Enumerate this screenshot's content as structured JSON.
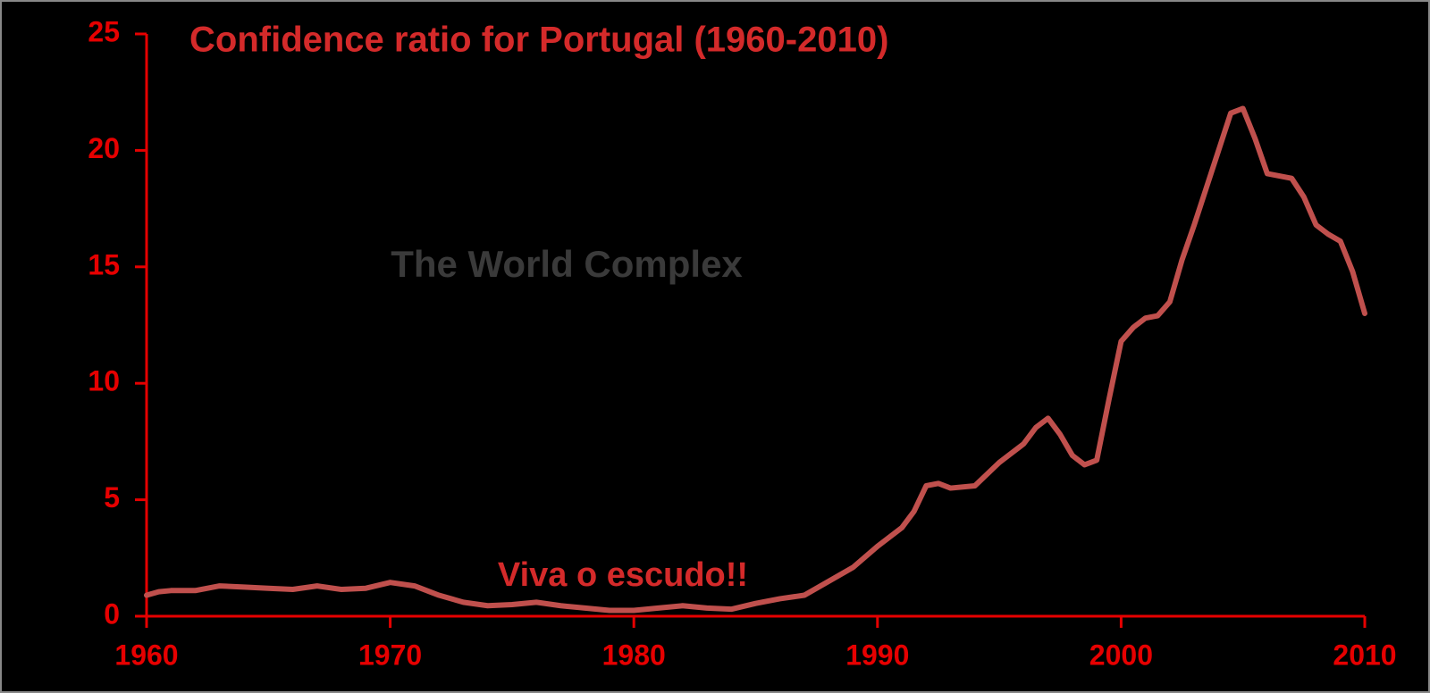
{
  "chart_data": {
    "type": "line",
    "title": "Confidence ratio for Portugal (1960-2010)",
    "watermark": "The World Complex",
    "annotation": "Viva o escudo!!",
    "x": [
      1960,
      1960.5,
      1961,
      1962,
      1963,
      1964,
      1965,
      1966,
      1967,
      1968,
      1969,
      1970,
      1971,
      1972,
      1973,
      1974,
      1975,
      1976,
      1977,
      1978,
      1979,
      1980,
      1981,
      1982,
      1983,
      1984,
      1985,
      1986,
      1987,
      1988,
      1989,
      1990,
      1991,
      1991.5,
      1992,
      1992.5,
      1993,
      1994,
      1995,
      1996,
      1996.5,
      1997,
      1997.5,
      1998,
      1998.5,
      1999,
      1999.5,
      2000,
      2000.5,
      2001,
      2001.5,
      2002,
      2002.5,
      2003,
      2003.5,
      2004,
      2004.5,
      2005,
      2005.5,
      2006,
      2006.5,
      2007,
      2007.5,
      2008,
      2008.5,
      2009,
      2009.5,
      2010
    ],
    "series": [
      {
        "name": "Confidence ratio",
        "color": "#c0504d",
        "values": [
          0.9,
          1.05,
          1.1,
          1.1,
          1.3,
          1.25,
          1.2,
          1.15,
          1.3,
          1.15,
          1.2,
          1.45,
          1.3,
          0.9,
          0.6,
          0.45,
          0.5,
          0.6,
          0.45,
          0.35,
          0.25,
          0.25,
          0.35,
          0.45,
          0.35,
          0.3,
          0.55,
          0.75,
          0.9,
          1.5,
          2.1,
          3.0,
          3.8,
          4.5,
          5.6,
          5.7,
          5.5,
          5.6,
          6.6,
          7.4,
          8.1,
          8.5,
          7.8,
          6.9,
          6.5,
          6.7,
          9.3,
          11.8,
          12.4,
          12.8,
          12.9,
          13.5,
          15.3,
          16.8,
          18.4,
          20.0,
          21.6,
          21.8,
          20.5,
          19.0,
          18.9,
          18.8,
          18.0,
          16.8,
          16.4,
          16.1,
          14.8,
          13.0
        ]
      }
    ],
    "xlim": [
      1960,
      2010
    ],
    "xticks": [
      1960,
      1970,
      1980,
      1990,
      2000,
      2010
    ],
    "ylim": [
      0,
      25
    ],
    "yticks": [
      0,
      5,
      10,
      15,
      20,
      25
    ],
    "axis_color": "#e60000",
    "grid": false
  }
}
